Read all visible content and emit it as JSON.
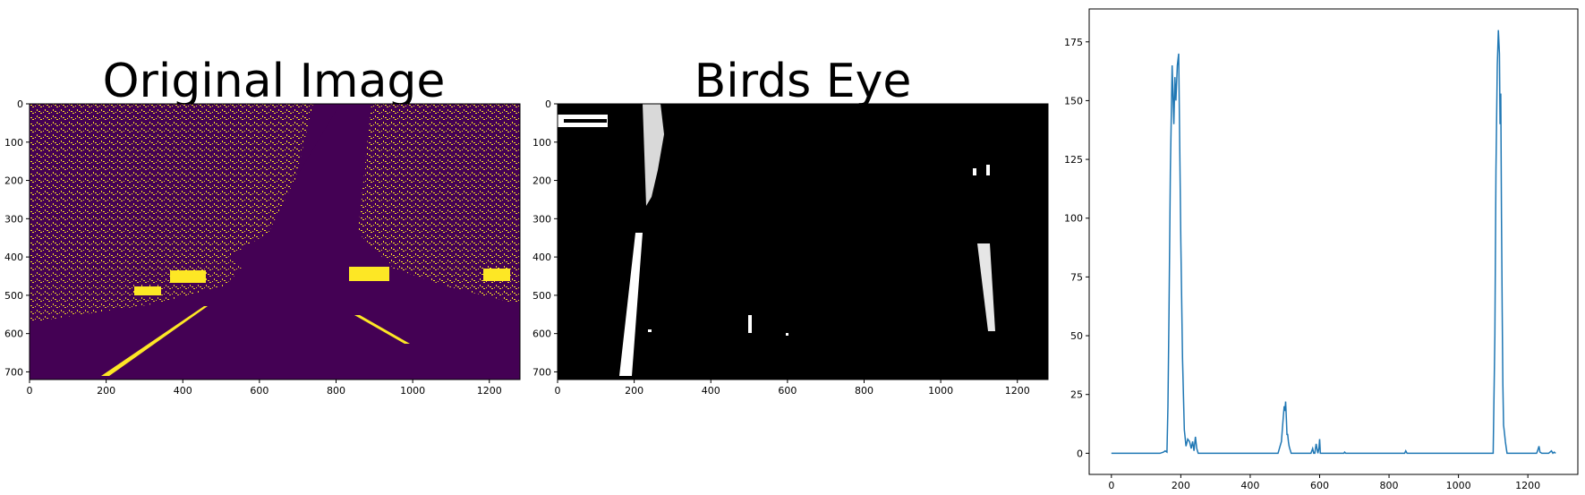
{
  "chart_data": [
    {
      "type": "image",
      "title": "Original Image",
      "image_extent": {
        "x": [
          0,
          1280
        ],
        "y": [
          720,
          0
        ]
      },
      "xticks": [
        "0",
        "200",
        "400",
        "600",
        "800",
        "1000",
        "1200"
      ],
      "yticks": [
        "0",
        "100",
        "200",
        "300",
        "400",
        "500",
        "600",
        "700"
      ],
      "colors": {
        "background": "#440154",
        "foreground": "#fde725"
      }
    },
    {
      "type": "image",
      "title": "Birds Eye",
      "image_extent": {
        "x": [
          0,
          1280
        ],
        "y": [
          720,
          0
        ]
      },
      "xticks": [
        "0",
        "200",
        "400",
        "600",
        "800",
        "1000",
        "1200"
      ],
      "yticks": [
        "0",
        "100",
        "200",
        "300",
        "400",
        "500",
        "600",
        "700"
      ],
      "colors": {
        "background": "#000000",
        "foreground": "#ffffff"
      }
    },
    {
      "type": "line",
      "title": "",
      "xlabel": "",
      "ylabel": "",
      "xlim": [
        -64,
        1344
      ],
      "ylim": [
        -9,
        189
      ],
      "xticks": [
        "0",
        "200",
        "400",
        "600",
        "800",
        "1000",
        "1200"
      ],
      "yticks": [
        "0",
        "25",
        "50",
        "75",
        "100",
        "125",
        "150",
        "175"
      ],
      "color": "#1f77b4",
      "series": [
        {
          "x": [
            0,
            140,
            150,
            155,
            160,
            163,
            166,
            170,
            175,
            178,
            180,
            183,
            186,
            190,
            194,
            197,
            200,
            205,
            210,
            215,
            220,
            225,
            230,
            234,
            238,
            242,
            246,
            250,
            255,
            260,
            480,
            490,
            495,
            498,
            500,
            502,
            504,
            506,
            508,
            510,
            512,
            514,
            516,
            518,
            525,
            575,
            580,
            583,
            586,
            590,
            595,
            598,
            600,
            602,
            605,
            610,
            670,
            672,
            675,
            680,
            845,
            848,
            852,
            855,
            1100,
            1105,
            1108,
            1112,
            1115,
            1118,
            1120,
            1122,
            1124,
            1126,
            1128,
            1130,
            1133,
            1135,
            1138,
            1140,
            1145,
            1150,
            1220,
            1225,
            1228,
            1232,
            1235,
            1240,
            1260,
            1268,
            1272,
            1276,
            1280
          ],
          "y": [
            0,
            0,
            0.5,
            1,
            0.5,
            20,
            60,
            120,
            165,
            150,
            140,
            160,
            150,
            165,
            170,
            130,
            90,
            40,
            10,
            3,
            6,
            5,
            2,
            5,
            1,
            7,
            2,
            0,
            0,
            0,
            0,
            5,
            15,
            20,
            18,
            22,
            15,
            8,
            8,
            5,
            3,
            2,
            1,
            0,
            0,
            0,
            2,
            0,
            0,
            4,
            0,
            2,
            6,
            0,
            0,
            0,
            0,
            0.5,
            0,
            0,
            0,
            1,
            0,
            0,
            0,
            50,
            120,
            165,
            180,
            170,
            140,
            153,
            100,
            60,
            30,
            12,
            8,
            5,
            2,
            0,
            0,
            0,
            0,
            0,
            1,
            3,
            0.5,
            0,
            0,
            1,
            0,
            0.5,
            0
          ]
        }
      ]
    }
  ]
}
